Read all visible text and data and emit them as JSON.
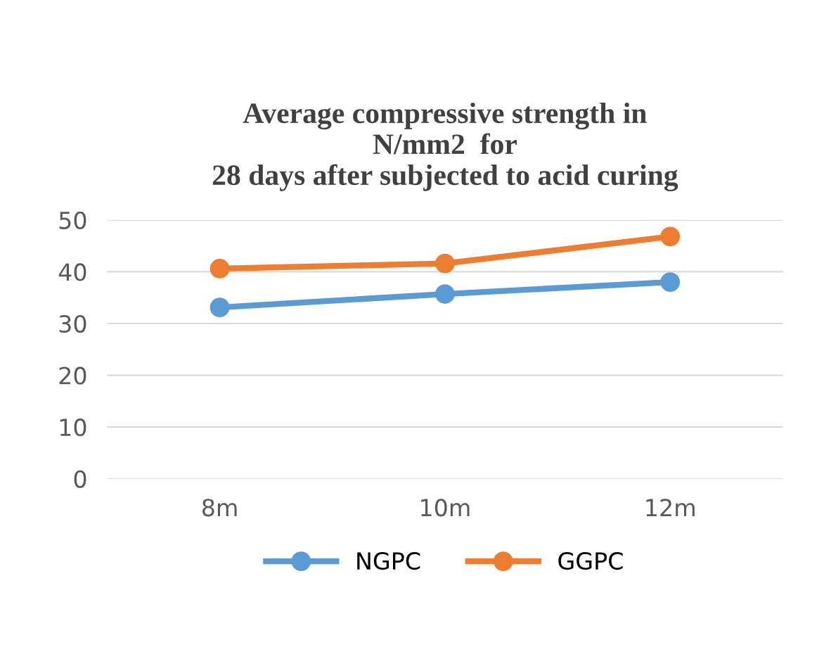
{
  "chart_data": {
    "type": "line",
    "title": "Average compressive strength in\nN/mm2  for\n28 days after subjected to acid curing",
    "categories": [
      "8m",
      "10m",
      "12m"
    ],
    "series": [
      {
        "name": "NGPC",
        "color": "#5b9bd5",
        "values": [
          33.1,
          35.7,
          38.0
        ]
      },
      {
        "name": "GGPC",
        "color": "#ed7d31",
        "values": [
          40.6,
          41.6,
          46.8
        ]
      }
    ],
    "ylim": [
      0,
      50
    ],
    "yticks": [
      0,
      10,
      20,
      30,
      40,
      50
    ],
    "grid": "y",
    "legend": "bottom",
    "marker": "circle",
    "line_style": "solid"
  }
}
